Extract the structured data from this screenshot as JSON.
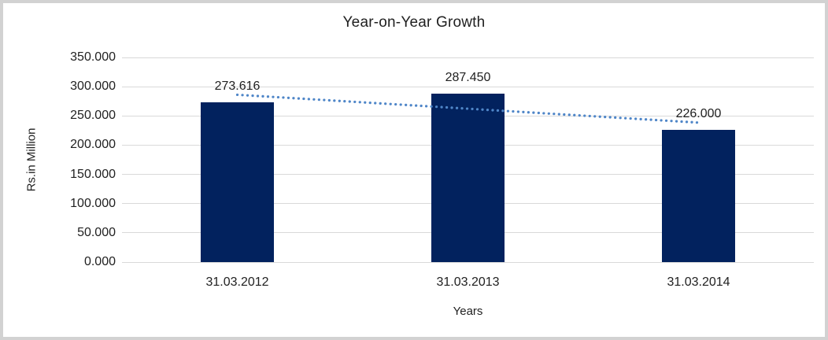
{
  "chart_data": {
    "type": "bar",
    "title": "Year-on-Year Growth",
    "xlabel": "Years",
    "ylabel": "Rs.in Million",
    "categories": [
      "31.03.2012",
      "31.03.2013",
      "31.03.2014"
    ],
    "series": [
      {
        "name": "Rs.in Million",
        "values": [
          273.616,
          287.45,
          226.0
        ]
      }
    ],
    "data_labels": [
      "273.616",
      "287.450",
      "226.000"
    ],
    "y_ticks": [
      0,
      50,
      100,
      150,
      200,
      250,
      300,
      350
    ],
    "y_tick_labels": [
      "0.000",
      "50.000",
      "100.000",
      "150.000",
      "200.000",
      "250.000",
      "300.000",
      "350.000"
    ],
    "ylim": [
      0,
      350
    ],
    "grid": true,
    "legend": "none",
    "trendline": {
      "type": "linear",
      "style": "dotted",
      "start_value": 286.16,
      "end_value": 238.55
    },
    "colors": {
      "bar": "#02225e",
      "trendline": "#4f86c8",
      "gridline": "#d9d9d9",
      "axis_line": "#d9d9d9",
      "text": "#212121",
      "frame_border": "#d2d2d2"
    }
  }
}
